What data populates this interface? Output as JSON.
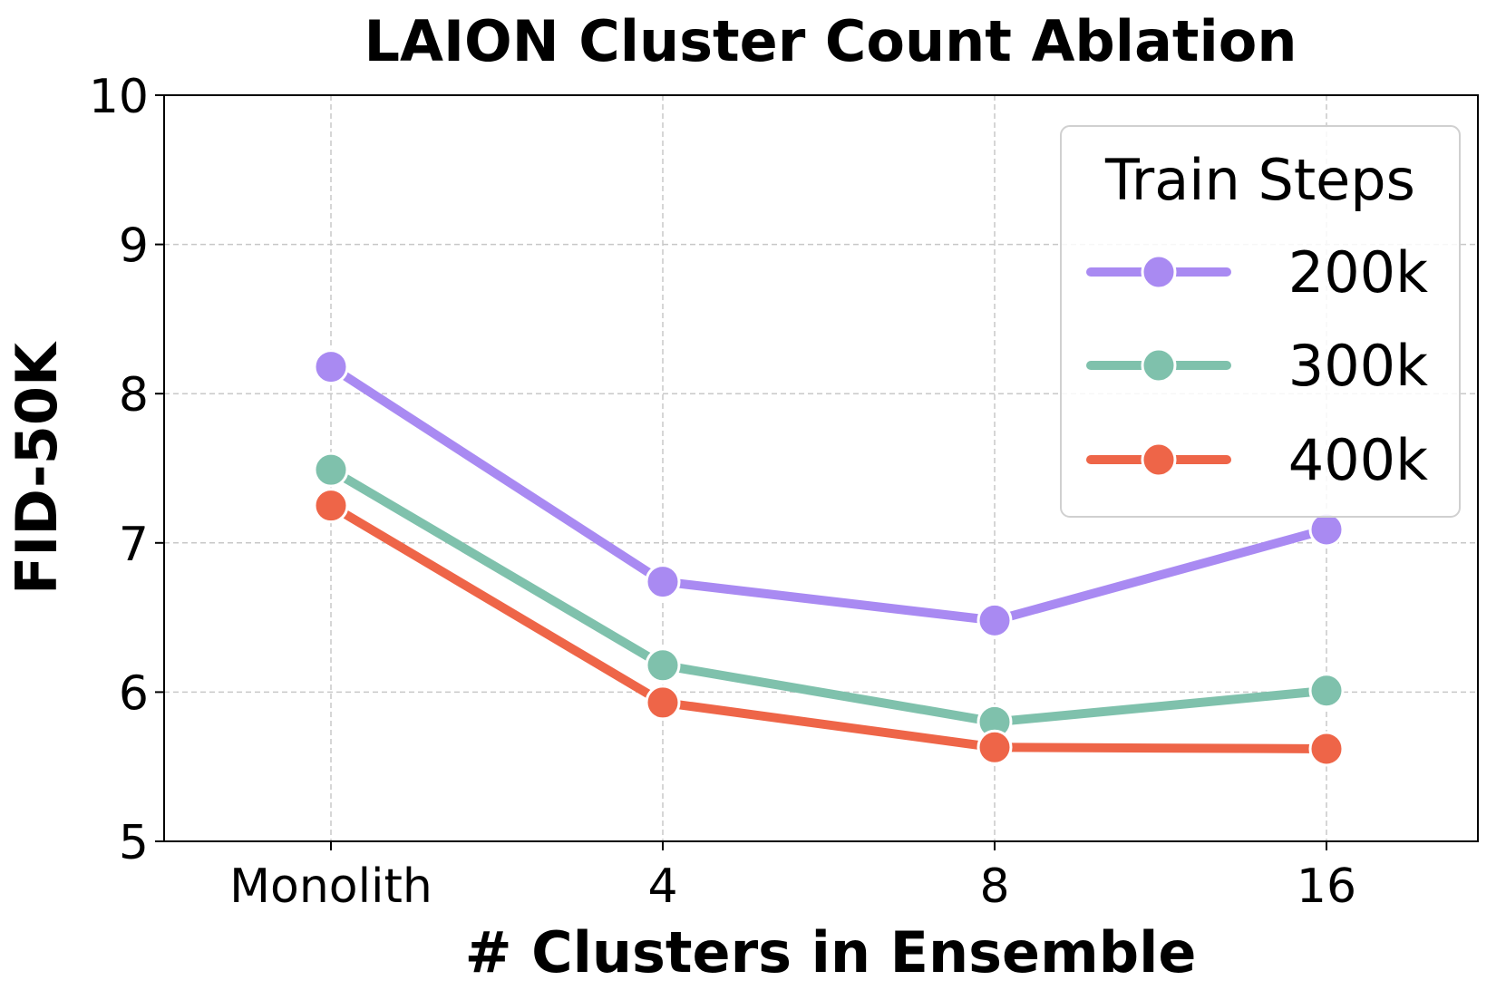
{
  "chart_data": {
    "type": "line",
    "title": "LAION Cluster Count Ablation",
    "xlabel": "# Clusters in Ensemble",
    "ylabel": "FID-50K",
    "categories": [
      "Monolith",
      "4",
      "8",
      "16"
    ],
    "ylim": [
      5,
      10
    ],
    "yticks": [
      5,
      6,
      7,
      8,
      9,
      10
    ],
    "grid": true,
    "legend": {
      "title": "Train Steps",
      "placement": "top-right"
    },
    "series": [
      {
        "name": "200k",
        "color": "#a98af2",
        "values": [
          8.18,
          6.74,
          6.48,
          7.09
        ]
      },
      {
        "name": "300k",
        "color": "#7fc1ac",
        "values": [
          7.49,
          6.18,
          5.8,
          6.01
        ]
      },
      {
        "name": "400k",
        "color": "#ee6548",
        "values": [
          7.25,
          5.93,
          5.63,
          5.62
        ]
      }
    ]
  }
}
